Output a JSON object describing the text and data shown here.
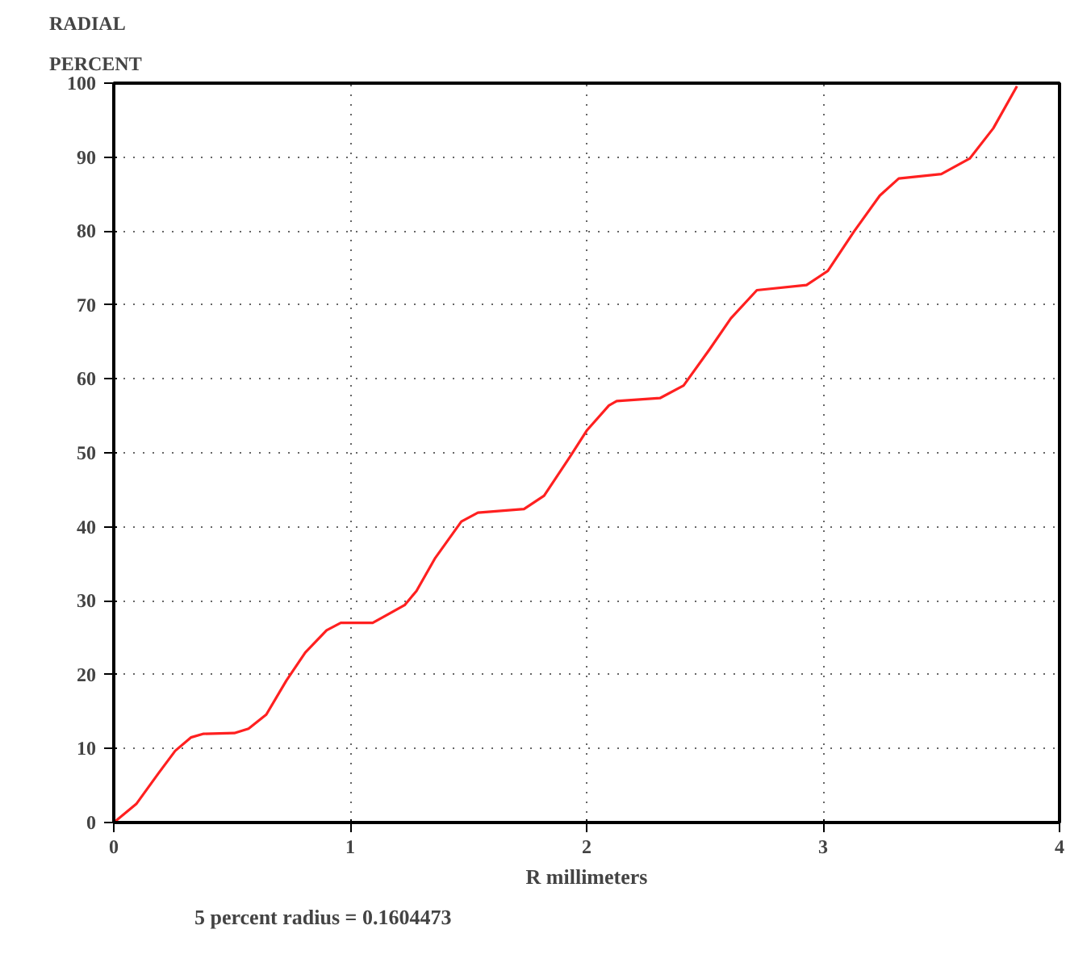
{
  "chart_data": {
    "type": "line",
    "ylabel": "RADIAL\nPERCENT",
    "xlabel": "R millimeters",
    "annotations": [
      "5 percent radius =  0.1604473"
    ],
    "x": [
      0,
      0.095,
      0.19,
      0.26,
      0.326,
      0.38,
      0.51,
      0.57,
      0.645,
      0.73,
      0.81,
      0.9,
      0.96,
      1.095,
      1.23,
      1.28,
      1.36,
      1.47,
      1.54,
      1.735,
      1.82,
      1.93,
      2.0,
      2.094,
      2.127,
      2.31,
      2.41,
      2.52,
      2.61,
      2.72,
      2.93,
      3.02,
      3.13,
      3.24,
      3.32,
      3.5,
      3.62,
      3.72,
      3.82
    ],
    "series": [
      {
        "color": "#ff2020",
        "values": [
          0,
          2.5,
          6.7,
          9.7,
          11.5,
          12.0,
          12.1,
          12.7,
          14.6,
          19.2,
          23.0,
          26.0,
          27.0,
          27.0,
          29.4,
          31.3,
          35.8,
          40.7,
          41.9,
          42.4,
          44.2,
          49.5,
          53.0,
          56.4,
          57.0,
          57.4,
          59.1,
          64.0,
          68.2,
          72.0,
          72.7,
          74.6,
          79.9,
          84.8,
          87.1,
          87.7,
          89.8,
          93.9,
          99.6
        ]
      }
    ],
    "xlim": [
      0,
      4
    ],
    "xticks": [
      0,
      1,
      2,
      3,
      4
    ],
    "ylim": [
      0,
      100
    ],
    "yticks": [
      0,
      10,
      20,
      30,
      40,
      50,
      60,
      70,
      80,
      90,
      100
    ],
    "grid": true
  }
}
